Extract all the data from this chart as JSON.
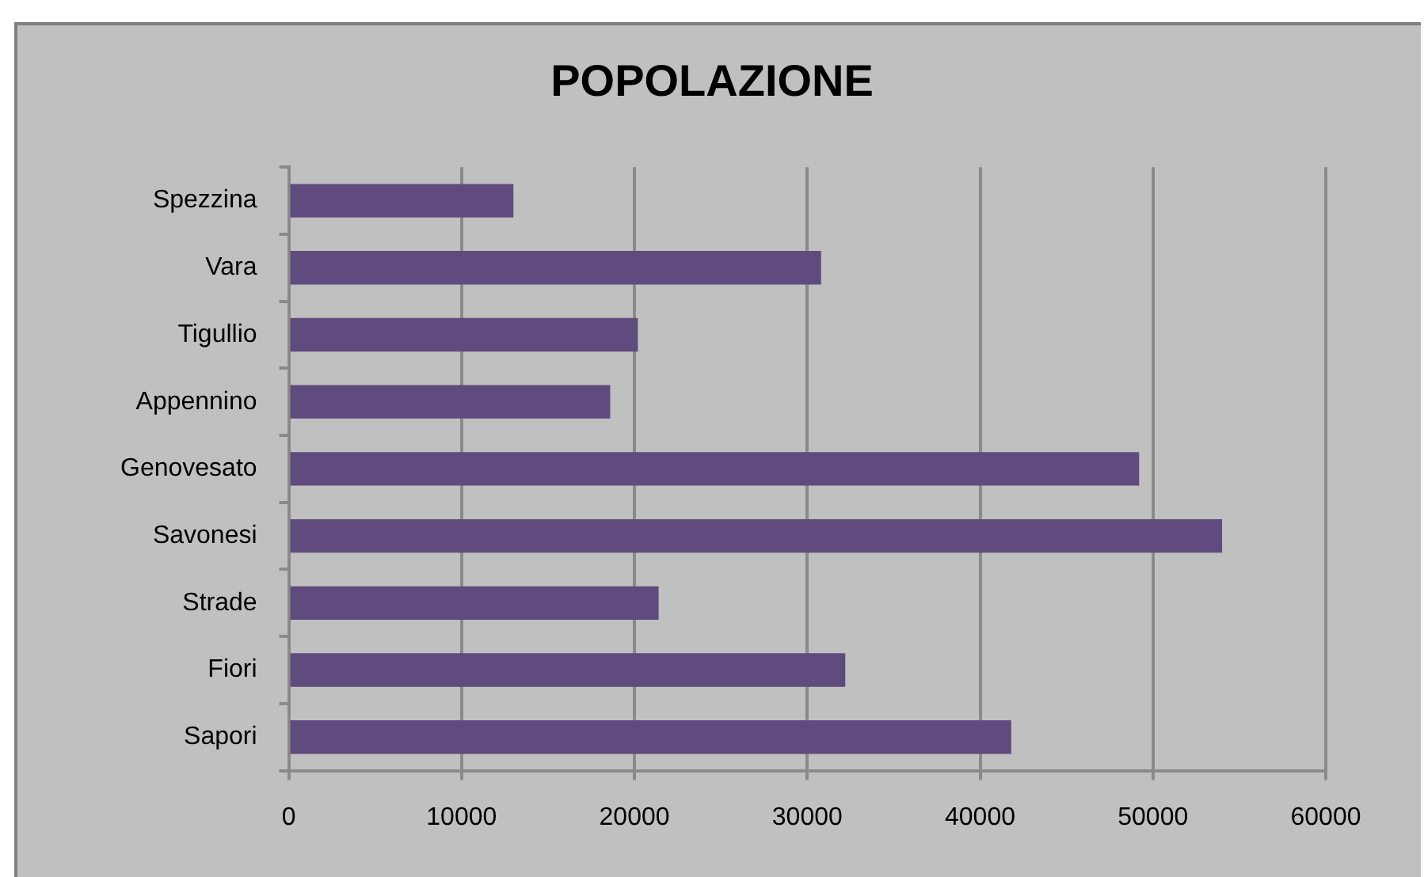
{
  "chart_data": {
    "type": "bar",
    "title": "POPOLAZIONE",
    "orientation": "horizontal",
    "categories": [
      "Spezzina",
      "Vara",
      "Tigullio",
      "Appennino",
      "Genovesato",
      "Savonesi",
      "Strade",
      "Fiori",
      "Sapori"
    ],
    "values": [
      13000,
      30800,
      20200,
      18600,
      49200,
      54000,
      21400,
      32200,
      41800
    ],
    "color": "#5f4b7d",
    "xlim": [
      0,
      60000
    ],
    "xticks": [
      0,
      10000,
      20000,
      30000,
      40000,
      50000,
      60000
    ],
    "grid": "x"
  }
}
